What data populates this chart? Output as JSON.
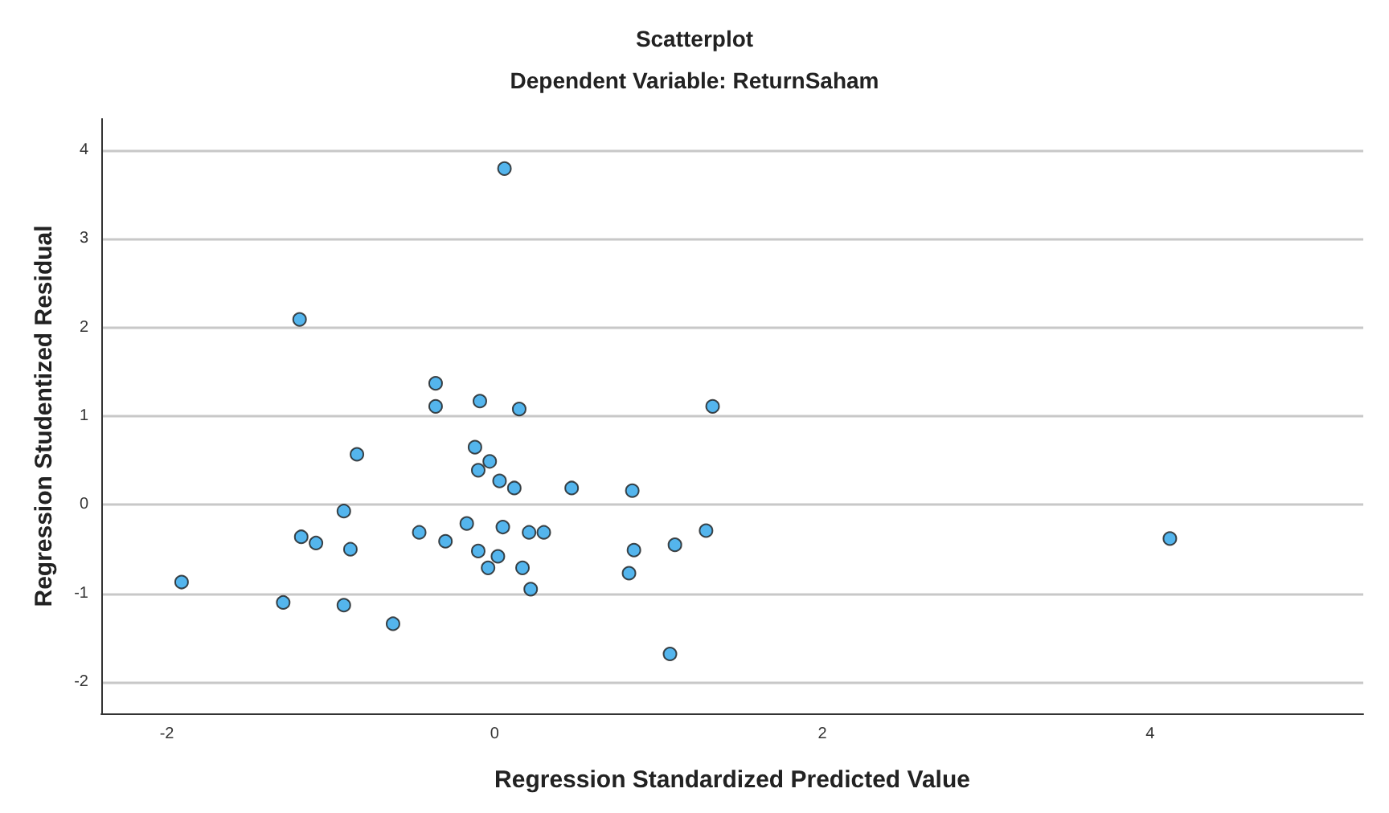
{
  "chart_data": {
    "type": "scatter",
    "title": "Scatterplot",
    "subtitle": "Dependent Variable: ReturnSaham",
    "xlabel": "Regression Standardized Predicted Value",
    "ylabel": "Regression Studentized Residual",
    "x": [
      -1.91,
      -1.29,
      -1.19,
      -1.18,
      -1.09,
      -0.92,
      -0.92,
      -0.88,
      -0.84,
      -0.62,
      -0.46,
      -0.36,
      -0.36,
      -0.3,
      -0.17,
      -0.12,
      -0.09,
      -0.1,
      -0.1,
      -0.04,
      -0.03,
      0.02,
      0.03,
      0.06,
      0.05,
      0.12,
      0.15,
      0.17,
      0.21,
      0.22,
      0.3,
      0.47,
      0.82,
      0.84,
      0.85,
      1.07,
      1.1,
      1.29,
      1.33,
      4.12
    ],
    "values": [
      -0.87,
      -1.1,
      2.09,
      -0.36,
      -0.43,
      -0.07,
      -1.13,
      -0.5,
      0.57,
      -1.34,
      -0.31,
      1.37,
      1.11,
      -0.41,
      -0.21,
      0.65,
      1.17,
      0.39,
      -0.52,
      -0.71,
      0.49,
      -0.58,
      0.27,
      3.79,
      -0.25,
      0.19,
      1.08,
      -0.71,
      -0.31,
      -0.95,
      -0.31,
      0.19,
      -0.77,
      0.16,
      -0.51,
      -1.68,
      -0.45,
      -0.29,
      1.11,
      -0.38
    ],
    "color": "#29a3e8",
    "marker": "circle",
    "grid": "y",
    "xlim": [
      -2.4,
      5.3
    ],
    "ylim": [
      -2.35,
      4.35
    ],
    "xticks": [
      -2,
      0,
      2,
      4
    ],
    "yticks": [
      -2,
      -1,
      0,
      1,
      2,
      3,
      4
    ]
  }
}
